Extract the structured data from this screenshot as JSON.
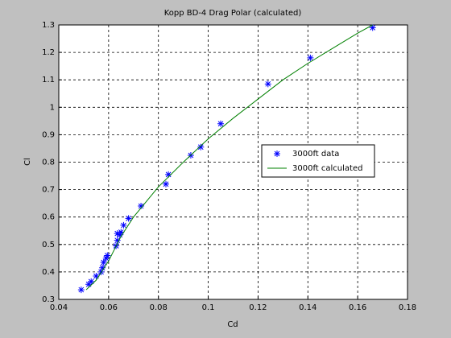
{
  "chart_data": {
    "type": "scatter-line",
    "title": "Kopp BD-4 Drag Polar (calculated)",
    "x_label": "Cd",
    "y_label": "Cl",
    "xlim": [
      0.04,
      0.18
    ],
    "xticks": [
      0.04,
      0.06,
      0.08,
      0.1,
      0.12,
      0.14,
      0.16,
      0.18
    ],
    "ylim": [
      0.3,
      1.3
    ],
    "yticks": [
      0.3,
      0.4,
      0.5,
      0.6,
      0.7,
      0.8,
      0.9,
      1,
      1.1,
      1.2,
      1.3
    ],
    "grid": true,
    "legend_position": "right",
    "series": [
      {
        "name": "3000ft data",
        "kind": "scatter",
        "color": "#0000ff",
        "x": [
          0.049,
          0.052,
          0.053,
          0.055,
          0.057,
          0.0575,
          0.058,
          0.059,
          0.0595,
          0.063,
          0.0635,
          0.0635,
          0.0645,
          0.065,
          0.066,
          0.068,
          0.073,
          0.083,
          0.084,
          0.093,
          0.097,
          0.105,
          0.124,
          0.141,
          0.166
        ],
        "values": [
          0.335,
          0.355,
          0.365,
          0.385,
          0.4,
          0.415,
          0.435,
          0.45,
          0.46,
          0.495,
          0.515,
          0.54,
          0.535,
          0.545,
          0.57,
          0.595,
          0.64,
          0.72,
          0.755,
          0.825,
          0.855,
          0.94,
          1.085,
          1.18,
          1.29
        ]
      },
      {
        "name": "3000ft calculated",
        "kind": "line",
        "color": "#008000",
        "x": [
          0.051,
          0.055,
          0.06,
          0.065,
          0.07,
          0.08,
          0.09,
          0.1,
          0.11,
          0.12,
          0.13,
          0.14,
          0.15,
          0.16,
          0.166
        ],
        "values": [
          0.335,
          0.37,
          0.44,
          0.53,
          0.6,
          0.71,
          0.8,
          0.885,
          0.96,
          1.03,
          1.1,
          1.16,
          1.215,
          1.27,
          1.3
        ]
      }
    ]
  }
}
